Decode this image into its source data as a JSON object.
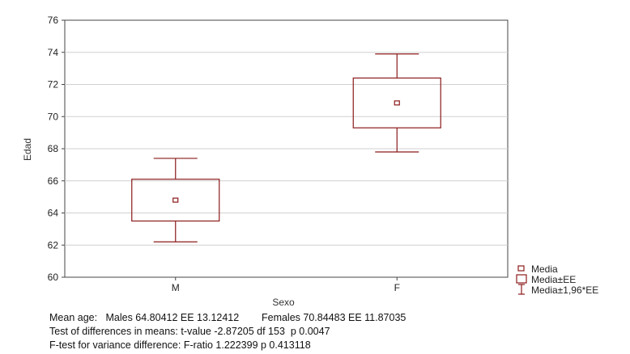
{
  "chart_data": {
    "type": "boxplot",
    "xlabel": "Sexo",
    "ylabel": "Edad",
    "ylim": [
      60,
      76
    ],
    "yticks": [
      60,
      62,
      64,
      66,
      68,
      70,
      72,
      74,
      76
    ],
    "grid": true,
    "categories": [
      "M",
      "F"
    ],
    "boxes": [
      {
        "category": "M",
        "mean": 64.8,
        "se_low": 63.5,
        "se_high": 66.1,
        "ci_low": 62.2,
        "ci_high": 67.4
      },
      {
        "category": "F",
        "mean": 70.85,
        "se_low": 69.3,
        "se_high": 72.4,
        "ci_low": 67.8,
        "ci_high": 73.9
      }
    ],
    "legend": {
      "placement": "bottom-right",
      "items": [
        "Media",
        "Media±EE",
        "Media±1,96*EE"
      ]
    },
    "series_color": "#8b1a1a"
  },
  "notes": {
    "line1": "Mean age:   Males 64.80412 EE 13.12412        Females 70.84483 EE 11.87035",
    "line2": "Test of differences in means: t-value -2.87205 df 153  p 0.0047",
    "line3": "F-test for variance difference: F-ratio 1.222399 p 0.413118"
  }
}
